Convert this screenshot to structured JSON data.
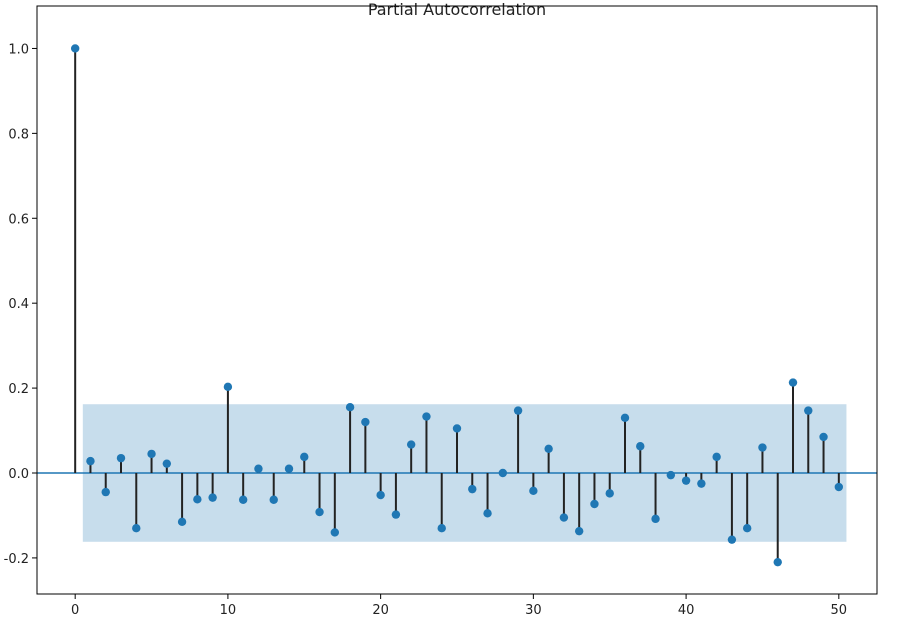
{
  "chart_data": {
    "type": "stem",
    "title": "Partial Autocorrelation",
    "xlabel": "",
    "ylabel": "",
    "xlim": [
      -2.5,
      52.5
    ],
    "ylim": [
      -0.285,
      1.1
    ],
    "x_ticks": [
      0,
      10,
      20,
      30,
      40,
      50
    ],
    "y_ticks": [
      -0.2,
      0.0,
      0.2,
      0.4,
      0.6,
      0.8,
      1.0
    ],
    "y_tick_labels": [
      "-0.2",
      "0.0",
      "0.2",
      "0.4",
      "0.6",
      "0.8",
      "1.0"
    ],
    "confidence_band": {
      "x_range": [
        0.5,
        50.5
      ],
      "lower": -0.162,
      "upper": 0.162
    },
    "lags": [
      0,
      1,
      2,
      3,
      4,
      5,
      6,
      7,
      8,
      9,
      10,
      11,
      12,
      13,
      14,
      15,
      16,
      17,
      18,
      19,
      20,
      21,
      22,
      23,
      24,
      25,
      26,
      27,
      28,
      29,
      30,
      31,
      32,
      33,
      34,
      35,
      36,
      37,
      38,
      39,
      40,
      41,
      42,
      43,
      44,
      45,
      46,
      47,
      48,
      49,
      50
    ],
    "values": [
      1.0,
      0.028,
      -0.045,
      0.035,
      -0.13,
      0.045,
      0.022,
      -0.115,
      -0.062,
      -0.058,
      0.203,
      -0.063,
      0.01,
      -0.063,
      0.01,
      0.038,
      -0.092,
      -0.14,
      0.155,
      0.12,
      -0.052,
      -0.098,
      0.067,
      0.133,
      -0.13,
      0.105,
      -0.038,
      -0.095,
      0.0,
      0.147,
      -0.042,
      0.057,
      -0.105,
      -0.137,
      -0.073,
      -0.048,
      0.13,
      0.063,
      -0.108,
      -0.005,
      -0.018,
      -0.025,
      0.038,
      -0.157,
      -0.13,
      0.06,
      -0.21,
      0.213,
      0.147,
      0.085,
      -0.033
    ],
    "grid": false,
    "colors": {
      "marker": "#1f77b4",
      "stem": "#222222",
      "zero_line": "#1f77b4",
      "band": "#1f77b4"
    }
  }
}
